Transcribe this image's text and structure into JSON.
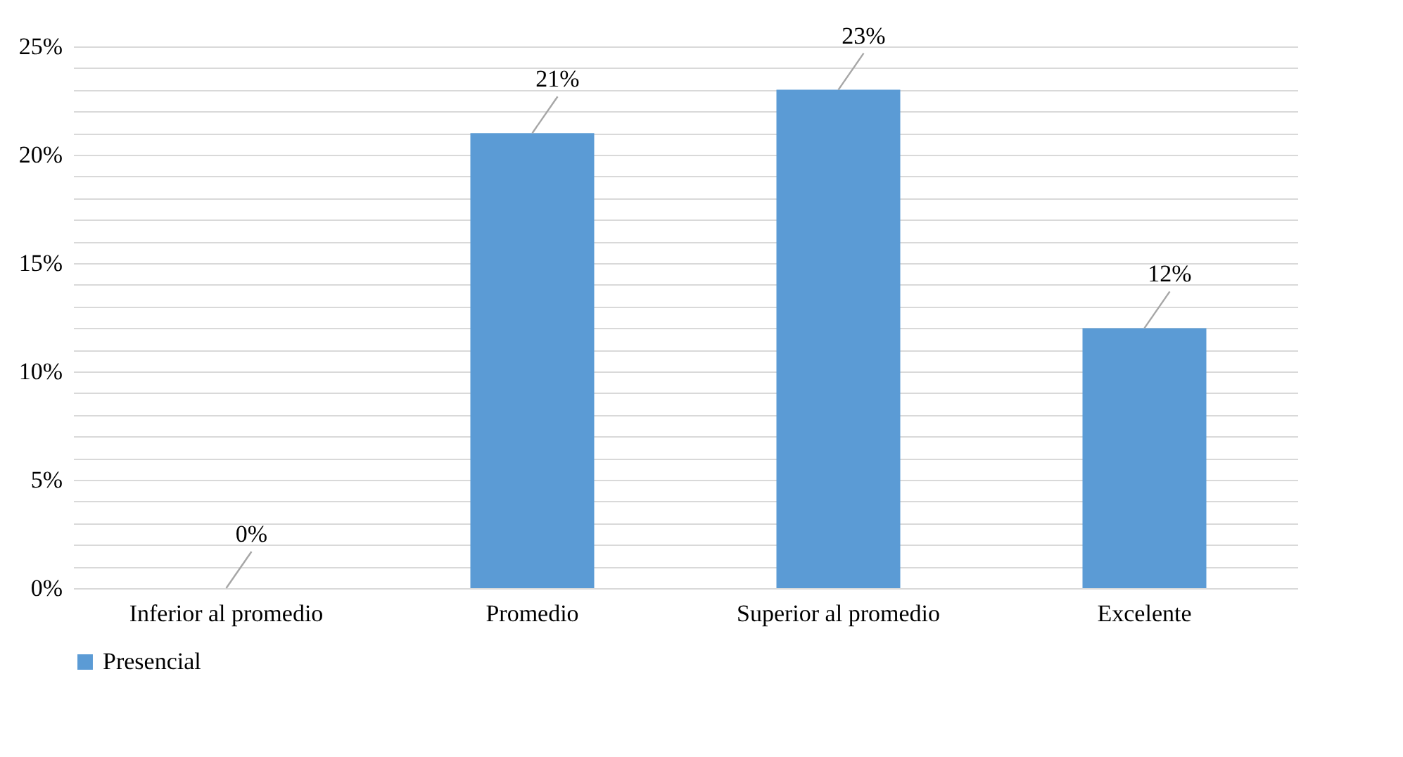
{
  "chart_data": {
    "type": "bar",
    "categories": [
      "Inferior al promedio",
      "Promedio",
      "Superior al promedio",
      "Excelente"
    ],
    "series": [
      {
        "name": "Presencial",
        "color": "#5b9bd5",
        "values": [
          0,
          21,
          23,
          12
        ]
      }
    ],
    "ylim": [
      0,
      25
    ],
    "yticks": [
      {
        "value": 0,
        "label": "0%"
      },
      {
        "value": 1,
        "label": null
      },
      {
        "value": 2,
        "label": null
      },
      {
        "value": 3,
        "label": null
      },
      {
        "value": 4,
        "label": null
      },
      {
        "value": 5,
        "label": "5%"
      },
      {
        "value": 6,
        "label": null
      },
      {
        "value": 7,
        "label": null
      },
      {
        "value": 8,
        "label": null
      },
      {
        "value": 9,
        "label": null
      },
      {
        "value": 10,
        "label": "10%"
      },
      {
        "value": 11,
        "label": null
      },
      {
        "value": 12,
        "label": null
      },
      {
        "value": 13,
        "label": null
      },
      {
        "value": 14,
        "label": null
      },
      {
        "value": 15,
        "label": "15%"
      },
      {
        "value": 16,
        "label": null
      },
      {
        "value": 17,
        "label": null
      },
      {
        "value": 18,
        "label": null
      },
      {
        "value": 19,
        "label": null
      },
      {
        "value": 20,
        "label": "20%"
      },
      {
        "value": 21,
        "label": null
      },
      {
        "value": 22,
        "label": null
      },
      {
        "value": 23,
        "label": null
      },
      {
        "value": 24,
        "label": null
      },
      {
        "value": 25,
        "label": "25%"
      }
    ],
    "value_labels": [
      "0%",
      "21%",
      "23%",
      "12%"
    ],
    "grid": "y",
    "legend": "bottom"
  }
}
